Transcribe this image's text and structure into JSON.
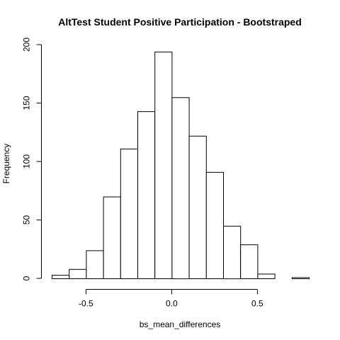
{
  "chart_data": {
    "type": "bar",
    "title": "AltTest Student Positive Participation - Bootstraped",
    "xlabel": "bs_mean_differences",
    "ylabel": "Frequency",
    "bin_edges": [
      -0.7,
      -0.6,
      -0.5,
      -0.4,
      -0.3,
      -0.2,
      -0.1,
      0.0,
      0.1,
      0.2,
      0.3,
      0.4,
      0.5,
      0.6,
      0.7,
      0.8
    ],
    "values": [
      3,
      8,
      24,
      70,
      111,
      143,
      194,
      155,
      122,
      91,
      45,
      29,
      4,
      0,
      1
    ],
    "xlim": [
      -0.7,
      0.8
    ],
    "ylim": [
      0,
      200
    ],
    "x_ticks": [
      -0.5,
      0.0,
      0.5
    ],
    "x_tick_labels": [
      "-0.5",
      "0.0",
      "0.5"
    ],
    "y_ticks": [
      0,
      50,
      100,
      150,
      200
    ],
    "y_tick_labels": [
      "0",
      "50",
      "100",
      "150",
      "200"
    ],
    "grid": false,
    "legend": false,
    "bar_fill": "#ffffff",
    "bar_stroke": "#000000"
  }
}
